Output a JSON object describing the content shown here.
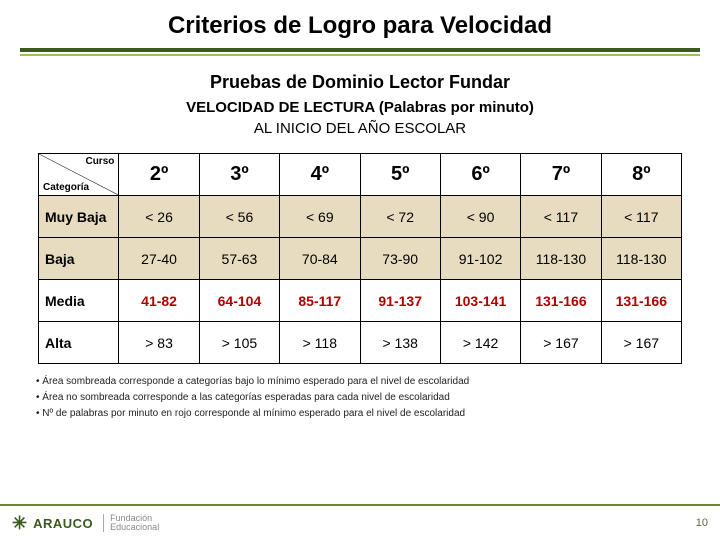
{
  "title": "Criterios de Logro para Velocidad",
  "sub1": "Pruebas de Dominio Lector Fundar",
  "sub2": "VELOCIDAD DE LECTURA (Palabras por minuto)",
  "sub3": "AL INICIO DEL AÑO ESCOLAR",
  "corner": {
    "top": "Curso",
    "bottom": "Categoría"
  },
  "grades": [
    "2º",
    "3º",
    "4º",
    "5º",
    "6º",
    "7º",
    "8º"
  ],
  "rows": [
    {
      "label": "Muy Baja",
      "shaded": true,
      "cells": [
        {
          "v": "< 26",
          "emph": false
        },
        {
          "v": "< 56",
          "emph": false
        },
        {
          "v": "< 69",
          "emph": false
        },
        {
          "v": "< 72",
          "emph": false
        },
        {
          "v": "< 90",
          "emph": false
        },
        {
          "v": "< 117",
          "emph": false
        },
        {
          "v": "< 117",
          "emph": false
        }
      ]
    },
    {
      "label": "Baja",
      "shaded": true,
      "cells": [
        {
          "v": "27-40",
          "emph": false
        },
        {
          "v": "57-63",
          "emph": false
        },
        {
          "v": "70-84",
          "emph": false
        },
        {
          "v": "73-90",
          "emph": false
        },
        {
          "v": "91-102",
          "emph": false
        },
        {
          "v": "118-130",
          "emph": false
        },
        {
          "v": "118-130",
          "emph": false
        }
      ]
    },
    {
      "label": "Media",
      "shaded": false,
      "cells": [
        {
          "v": "41-82",
          "emph": true
        },
        {
          "v": "64-104",
          "emph": true
        },
        {
          "v": "85-117",
          "emph": true
        },
        {
          "v": "91-137",
          "emph": true
        },
        {
          "v": "103-141",
          "emph": true
        },
        {
          "v": "131-166",
          "emph": true
        },
        {
          "v": "131-166",
          "emph": true
        }
      ]
    },
    {
      "label": "Alta",
      "shaded": false,
      "cells": [
        {
          "v": "> 83",
          "emph": false
        },
        {
          "v": "> 105",
          "emph": false
        },
        {
          "v": "> 118",
          "emph": false
        },
        {
          "v": "> 138",
          "emph": false
        },
        {
          "v": "> 142",
          "emph": false
        },
        {
          "v": "> 167",
          "emph": false
        },
        {
          "v": "> 167",
          "emph": false
        }
      ]
    }
  ],
  "notes": [
    "Área sombreada corresponde a categorías bajo lo mínimo esperado para el nivel de escolaridad",
    "Área no sombreada corresponde a las categorías esperadas para cada nivel de escolaridad",
    "Nº de palabras por minuto en rojo corresponde al mínimo esperado para el nivel de escolaridad"
  ],
  "logo": {
    "brand": "ARAUCO",
    "sub1": "Fundación",
    "sub2": "Educacional"
  },
  "page": "10",
  "colors": {
    "rule_dark": "#3b5b1c",
    "rule_light": "#9fbf5b",
    "shaded_bg": "#e8dcc0",
    "emph_text": "#b00000",
    "footer_line": "#6a8a2c"
  }
}
